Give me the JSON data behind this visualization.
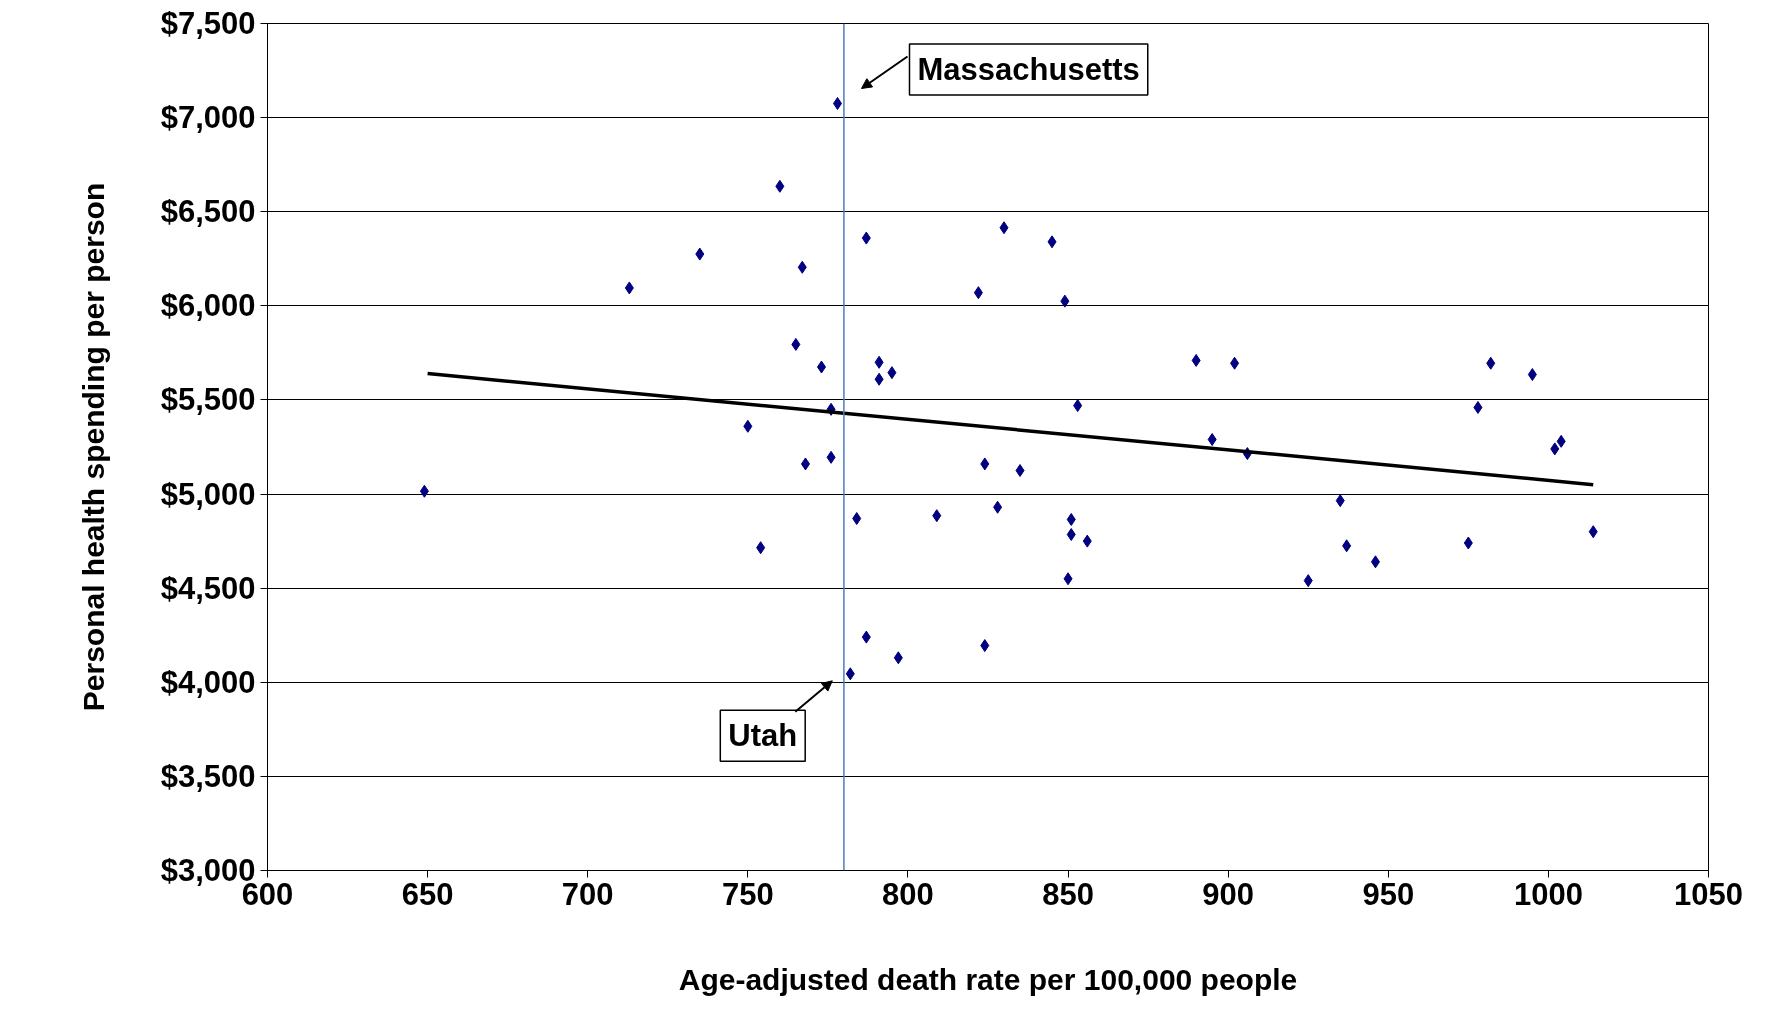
{
  "chart_data": {
    "type": "scatter",
    "xlabel": "Age-adjusted death rate per 100,000 people",
    "ylabel": "Personal health spending per person",
    "xlim": [
      600,
      1050
    ],
    "xticks": [
      600,
      650,
      700,
      750,
      800,
      850,
      900,
      950,
      1000,
      1050
    ],
    "ylim": [
      3000,
      7500
    ],
    "yticks": [
      {
        "value": 3000,
        "label": "$3,000"
      },
      {
        "value": 3500,
        "label": "$3,500"
      },
      {
        "value": 4000,
        "label": "$4,000"
      },
      {
        "value": 4500,
        "label": "$4,500"
      },
      {
        "value": 5000,
        "label": "$5,000"
      },
      {
        "value": 5500,
        "label": "$5,500"
      },
      {
        "value": 6000,
        "label": "$6,000"
      },
      {
        "value": 6500,
        "label": "$6,500"
      },
      {
        "value": 7000,
        "label": "$7,000"
      },
      {
        "value": 7500,
        "label": "$7,500"
      }
    ],
    "grid": "y",
    "marker": "diamond",
    "series": [
      {
        "color": "#000080",
        "x": [
          649,
          713,
          735,
          760,
          778,
          767,
          787,
          830,
          845,
          822,
          849,
          765,
          773,
          791,
          795,
          791,
          750,
          776,
          853,
          768,
          776,
          824,
          835,
          754,
          784,
          809,
          828,
          851,
          851,
          856,
          850,
          787,
          797,
          824,
          782,
          890,
          902,
          895,
          906,
          935,
          937,
          946,
          925,
          975,
          978,
          982,
          995,
          1004,
          1002,
          1014
        ],
        "values": [
          5015,
          6095,
          6275,
          6635,
          7075,
          6205,
          6360,
          6415,
          6340,
          6070,
          6025,
          5795,
          5675,
          5700,
          5645,
          5610,
          5360,
          5450,
          5470,
          5160,
          5195,
          5160,
          5125,
          4715,
          4870,
          4885,
          4930,
          4865,
          4785,
          4750,
          4550,
          4240,
          4130,
          4195,
          4045,
          5710,
          5695,
          5290,
          5215,
          4965,
          4725,
          4640,
          4540,
          4740,
          5460,
          5695,
          5635,
          5280,
          5240,
          4800
        ]
      },
      {
        "type": "line",
        "color": "#000000",
        "line_style": "solid",
        "marker": "none",
        "x": [
          650,
          1014
        ],
        "values": [
          5640,
          5050
        ]
      }
    ],
    "ref_lines": [
      {
        "axis": "x",
        "value": 780,
        "color": "#4a7ebb",
        "line_style": "solid"
      }
    ],
    "annotations": [
      {
        "text": "Massachusetts",
        "x": 778,
        "y": 7075
      },
      {
        "text": "Utah",
        "x": 782,
        "y": 4045
      }
    ]
  }
}
